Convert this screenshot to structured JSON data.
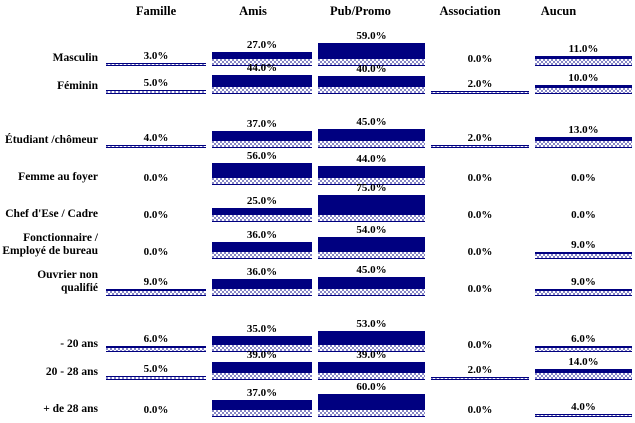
{
  "chart_data": {
    "type": "bar",
    "layout": "matrix-of-bars",
    "unit": "percent",
    "title": "",
    "grid": false,
    "legend": false,
    "ylim": [
      0,
      100
    ],
    "columns": [
      "Famille",
      "Amis",
      "Pub/Promo",
      "Association",
      "Aucun"
    ],
    "row_groups": [
      [
        "Masculin",
        "Féminin"
      ],
      [
        "Étudiant /chômeur",
        "Femme au foyer",
        "Chef d'Ese / Cadre",
        "Fonctionnaire / Employé de bureau",
        "Ouvrier non qualifié"
      ],
      [
        "- 20 ans",
        "20 - 28 ans",
        "+ de 28 ans"
      ]
    ],
    "rows": [
      {
        "category": "Masculin",
        "values": [
          3,
          27,
          59,
          0,
          11
        ],
        "labels": [
          "3.0%",
          "27.0%",
          "59.0%",
          "0.0%",
          "11.0%"
        ]
      },
      {
        "category": "Féminin",
        "values": [
          5,
          44,
          40,
          2,
          10
        ],
        "labels": [
          "5.0%",
          "44.0%",
          "40.0%",
          "2.0%",
          "10.0%"
        ]
      },
      {
        "category": "Étudiant /chômeur",
        "values": [
          4,
          37,
          45,
          2,
          13
        ],
        "labels": [
          "4.0%",
          "37.0%",
          "45.0%",
          "2.0%",
          "13.0%"
        ]
      },
      {
        "category": "Femme au foyer",
        "values": [
          0,
          56,
          44,
          0,
          0
        ],
        "labels": [
          "0.0%",
          "56.0%",
          "44.0%",
          "0.0%",
          "0.0%"
        ]
      },
      {
        "category": "Chef d'Ese / Cadre",
        "values": [
          0,
          25,
          75,
          0,
          0
        ],
        "labels": [
          "0.0%",
          "25.0%",
          "75.0%",
          "0.0%",
          "0.0%"
        ]
      },
      {
        "category": "Fonctionnaire / Employé de bureau",
        "values": [
          0,
          36,
          54,
          0,
          9
        ],
        "labels": [
          "0.0%",
          "36.0%",
          "54.0%",
          "0.0%",
          "9.0%"
        ]
      },
      {
        "category": "Ouvrier non qualifié",
        "values": [
          9,
          36,
          45,
          0,
          9
        ],
        "labels": [
          "9.0%",
          "36.0%",
          "45.0%",
          "0.0%",
          "9.0%"
        ]
      },
      {
        "category": "- 20 ans",
        "values": [
          6,
          35,
          53,
          0,
          6
        ],
        "labels": [
          "6.0%",
          "35.0%",
          "53.0%",
          "0.0%",
          "6.0%"
        ]
      },
      {
        "category": "20 - 28 ans",
        "values": [
          5,
          39,
          39,
          2,
          14
        ],
        "labels": [
          "5.0%",
          "39.0%",
          "39.0%",
          "2.0%",
          "14.0%"
        ]
      },
      {
        "category": "+ de 28 ans",
        "values": [
          0,
          37,
          60,
          0,
          4
        ],
        "labels": [
          "0.0%",
          "37.0%",
          "60.0%",
          "0.0%",
          "4.0%"
        ]
      }
    ],
    "colors": {
      "bar": "#000080",
      "hatch": "#8585c6",
      "hatch_bg": "#ffffff",
      "text": "#000000",
      "background": "#ffffff"
    }
  }
}
